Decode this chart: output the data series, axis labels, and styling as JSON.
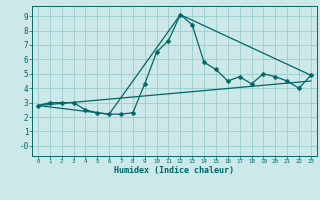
{
  "title": "",
  "xlabel": "Humidex (Indice chaleur)",
  "bg_color": "#cce8e8",
  "grid_color": "#99cccc",
  "line_color": "#006666",
  "xlim": [
    -0.5,
    23.5
  ],
  "ylim": [
    -0.7,
    9.7
  ],
  "xticks": [
    0,
    1,
    2,
    3,
    4,
    5,
    6,
    7,
    8,
    9,
    10,
    11,
    12,
    13,
    14,
    15,
    16,
    17,
    18,
    19,
    20,
    21,
    22,
    23
  ],
  "yticks": [
    0,
    1,
    2,
    3,
    4,
    5,
    6,
    7,
    8,
    9
  ],
  "ytick_labels": [
    "-0",
    "1",
    "2",
    "3",
    "4",
    "5",
    "6",
    "7",
    "8",
    "9"
  ],
  "line1_x": [
    0,
    1,
    2,
    3,
    4,
    5,
    6,
    7,
    8,
    9,
    10,
    11,
    12,
    13,
    14,
    15,
    16,
    17,
    18,
    19,
    20,
    21,
    22,
    23
  ],
  "line1_y": [
    2.8,
    3.0,
    3.0,
    3.0,
    2.5,
    2.3,
    2.2,
    2.2,
    2.3,
    4.3,
    6.5,
    7.3,
    9.1,
    8.4,
    5.8,
    5.3,
    4.5,
    4.8,
    4.3,
    5.0,
    4.8,
    4.5,
    4.0,
    4.9
  ],
  "line2_x": [
    0,
    23
  ],
  "line2_y": [
    2.8,
    4.5
  ],
  "line3_x": [
    0,
    6,
    12,
    23
  ],
  "line3_y": [
    2.8,
    2.2,
    9.1,
    4.9
  ]
}
